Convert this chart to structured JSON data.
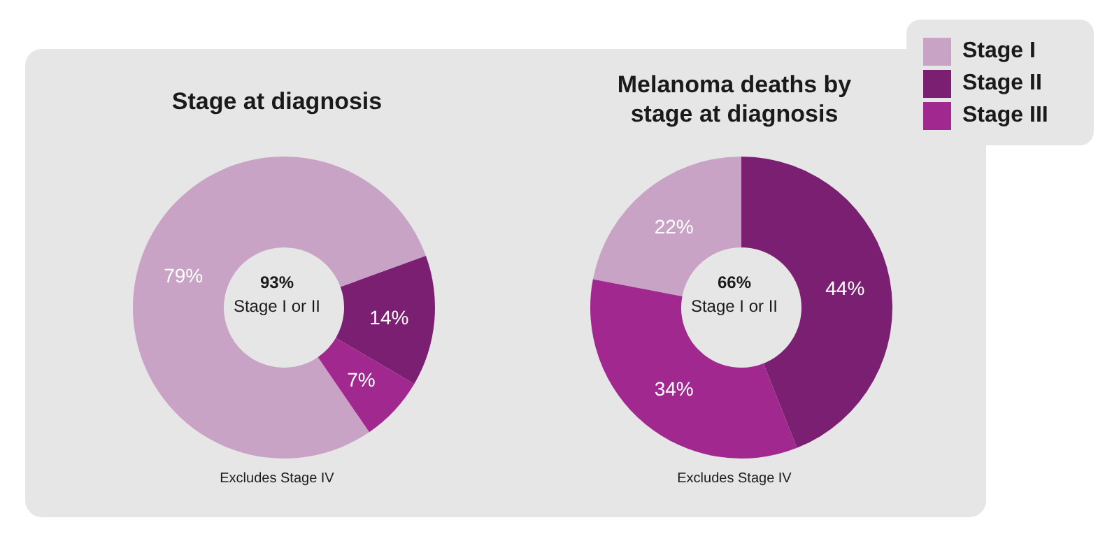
{
  "chart_data": [
    {
      "type": "donut",
      "title": "Stage at diagnosis",
      "categories": [
        "Stage I",
        "Stage II",
        "Stage III"
      ],
      "values": [
        79,
        14,
        7
      ],
      "colors": [
        "#c9a3c5",
        "#7b1f73",
        "#a0288f"
      ],
      "value_labels": [
        "79%",
        "14%",
        "7%"
      ],
      "legend": "top right",
      "annotations": [
        "93%",
        "Stage I or II",
        "Excludes Stage IV"
      ]
    },
    {
      "type": "donut",
      "title": "Melanoma deaths by stage at diagnosis",
      "categories": [
        null,
        null,
        null
      ],
      "values": [
        22,
        44,
        34
      ],
      "colors": [
        "#c9a3c5",
        "#7b1f73",
        "#a0288f"
      ],
      "value_labels": [
        "22%",
        "44%",
        "34%"
      ],
      "annotations": [
        "66%",
        "Stage I or II",
        "Excludes Stage IV"
      ]
    }
  ]
}
